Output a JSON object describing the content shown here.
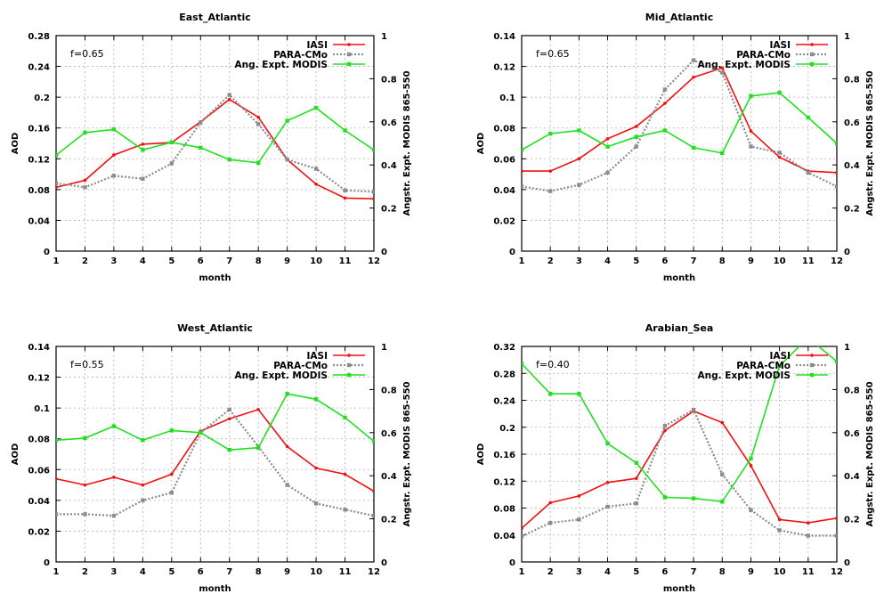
{
  "figure": {
    "colors": {
      "iasi": "#f01010",
      "para": "#8c8c8c",
      "modis": "#20e020"
    }
  },
  "chart_data": [
    {
      "type": "line",
      "title": "East_Atlantic",
      "annotation": "f=0.65",
      "xlabel": "month",
      "ylabel": "AOD",
      "y2label": "Angstr. Expt. MODIS 865-550",
      "xlim": [
        1,
        12
      ],
      "ylim": [
        0,
        0.28
      ],
      "y2lim": [
        0,
        1
      ],
      "xticks": [
        "1",
        "2",
        "3",
        "4",
        "5",
        "6",
        "7",
        "8",
        "9",
        "10",
        "11",
        "12"
      ],
      "yticks": [
        "0",
        "0.04",
        "0.08",
        "0.12",
        "0.16",
        "0.2",
        "0.24",
        "0.28"
      ],
      "y2ticks": [
        "0",
        "0.2",
        "0.4",
        "0.6",
        "0.8",
        "1"
      ],
      "grid": true,
      "legend_position": "top-right",
      "x": [
        1,
        2,
        3,
        4,
        5,
        6,
        7,
        8,
        9,
        10,
        11,
        12
      ],
      "series": [
        {
          "name": "IASI",
          "axis": "left",
          "values": [
            0.083,
            0.092,
            0.125,
            0.139,
            0.141,
            0.168,
            0.197,
            0.174,
            0.119,
            0.087,
            0.069,
            0.068
          ]
        },
        {
          "name": "PARA-CMo",
          "axis": "left",
          "values": [
            0.088,
            0.083,
            0.098,
            0.094,
            0.114,
            0.167,
            0.203,
            0.165,
            0.119,
            0.107,
            0.079,
            0.077
          ]
        },
        {
          "name": "Ang. Expt. MODIS",
          "axis": "right",
          "values": [
            0.445,
            0.55,
            0.565,
            0.47,
            0.505,
            0.48,
            0.425,
            0.41,
            0.605,
            0.665,
            0.56,
            0.47
          ]
        }
      ]
    },
    {
      "type": "line",
      "title": "Mid_Atlantic",
      "annotation": "f=0.65",
      "xlabel": "month",
      "ylabel": "AOD",
      "y2label": "Angstr. Expt. MODIS 865-550",
      "xlim": [
        1,
        12
      ],
      "ylim": [
        0,
        0.14
      ],
      "y2lim": [
        0,
        1
      ],
      "xticks": [
        "1",
        "2",
        "3",
        "4",
        "5",
        "6",
        "7",
        "8",
        "9",
        "10",
        "11",
        "12"
      ],
      "yticks": [
        "0",
        "0.02",
        "0.04",
        "0.06",
        "0.08",
        "0.1",
        "0.12",
        "0.14"
      ],
      "y2ticks": [
        "0",
        "0.2",
        "0.4",
        "0.6",
        "0.8",
        "1"
      ],
      "grid": true,
      "legend_position": "top-right",
      "x": [
        1,
        2,
        3,
        4,
        5,
        6,
        7,
        8,
        9,
        10,
        11,
        12
      ],
      "series": [
        {
          "name": "IASI",
          "axis": "left",
          "values": [
            0.052,
            0.052,
            0.06,
            0.073,
            0.081,
            0.096,
            0.113,
            0.119,
            0.078,
            0.061,
            0.052,
            0.051
          ]
        },
        {
          "name": "PARA-CMo",
          "axis": "left",
          "values": [
            0.042,
            0.039,
            0.043,
            0.051,
            0.068,
            0.105,
            0.124,
            0.116,
            0.068,
            0.064,
            0.051,
            0.042
          ]
        },
        {
          "name": "Ang. Expt. MODIS",
          "axis": "right",
          "values": [
            0.47,
            0.545,
            0.56,
            0.485,
            0.53,
            0.56,
            0.48,
            0.455,
            0.72,
            0.735,
            0.62,
            0.5
          ]
        }
      ]
    },
    {
      "type": "line",
      "title": "West_Atlantic",
      "annotation": "f=0.55",
      "xlabel": "month",
      "ylabel": "AOD",
      "y2label": "Angstr. Expt. MODIS 865-550",
      "xlim": [
        1,
        12
      ],
      "ylim": [
        0,
        0.14
      ],
      "y2lim": [
        0,
        1
      ],
      "xticks": [
        "1",
        "2",
        "3",
        "4",
        "5",
        "6",
        "7",
        "8",
        "9",
        "10",
        "11",
        "12"
      ],
      "yticks": [
        "0",
        "0.02",
        "0.04",
        "0.06",
        "0.08",
        "0.1",
        "0.12",
        "0.14"
      ],
      "y2ticks": [
        "0",
        "0.2",
        "0.4",
        "0.6",
        "0.8",
        "1"
      ],
      "grid": true,
      "legend_position": "top-right",
      "x": [
        1,
        2,
        3,
        4,
        5,
        6,
        7,
        8,
        9,
        10,
        11,
        12
      ],
      "series": [
        {
          "name": "IASI",
          "axis": "left",
          "values": [
            0.054,
            0.05,
            0.055,
            0.05,
            0.057,
            0.085,
            0.093,
            0.099,
            0.075,
            0.061,
            0.057,
            0.046
          ]
        },
        {
          "name": "PARA-CMo",
          "axis": "left",
          "values": [
            0.031,
            0.031,
            0.03,
            0.04,
            0.045,
            0.084,
            0.099,
            0.075,
            0.05,
            0.038,
            0.034,
            0.03
          ]
        },
        {
          "name": "Ang. Expt. MODIS",
          "axis": "right",
          "values": [
            0.565,
            0.575,
            0.63,
            0.565,
            0.61,
            0.6,
            0.52,
            0.53,
            0.78,
            0.755,
            0.67,
            0.56
          ]
        }
      ]
    },
    {
      "type": "line",
      "title": "Arabian_Sea",
      "annotation": "f=0.40",
      "xlabel": "month",
      "ylabel": "AOD",
      "y2label": "Angstr. Expt. MODIS 865-550",
      "xlim": [
        1,
        12
      ],
      "ylim": [
        0,
        0.32
      ],
      "y2lim": [
        0,
        1
      ],
      "xticks": [
        "1",
        "2",
        "3",
        "4",
        "5",
        "6",
        "7",
        "8",
        "9",
        "10",
        "11",
        "12"
      ],
      "yticks": [
        "0",
        "0.04",
        "0.08",
        "0.12",
        "0.16",
        "0.2",
        "0.24",
        "0.28",
        "0.32"
      ],
      "y2ticks": [
        "0",
        "0.2",
        "0.4",
        "0.6",
        "0.8",
        "1"
      ],
      "grid": true,
      "legend_position": "top-right",
      "x": [
        1,
        2,
        3,
        4,
        5,
        6,
        7,
        8,
        9,
        10,
        11,
        12
      ],
      "series": [
        {
          "name": "IASI",
          "axis": "left",
          "values": [
            0.05,
            0.088,
            0.098,
            0.118,
            0.124,
            0.195,
            0.224,
            0.207,
            0.143,
            0.063,
            0.058,
            0.065
          ]
        },
        {
          "name": "PARA-CMo",
          "axis": "left",
          "values": [
            0.038,
            0.058,
            0.063,
            0.082,
            0.087,
            0.202,
            0.226,
            0.13,
            0.077,
            0.047,
            0.039,
            0.039
          ]
        },
        {
          "name": "Ang. Expt. MODIS",
          "axis": "right",
          "values": [
            0.92,
            0.78,
            0.78,
            0.55,
            0.46,
            0.3,
            0.295,
            0.28,
            0.48,
            0.91,
            1.04,
            0.93
          ]
        }
      ]
    }
  ]
}
